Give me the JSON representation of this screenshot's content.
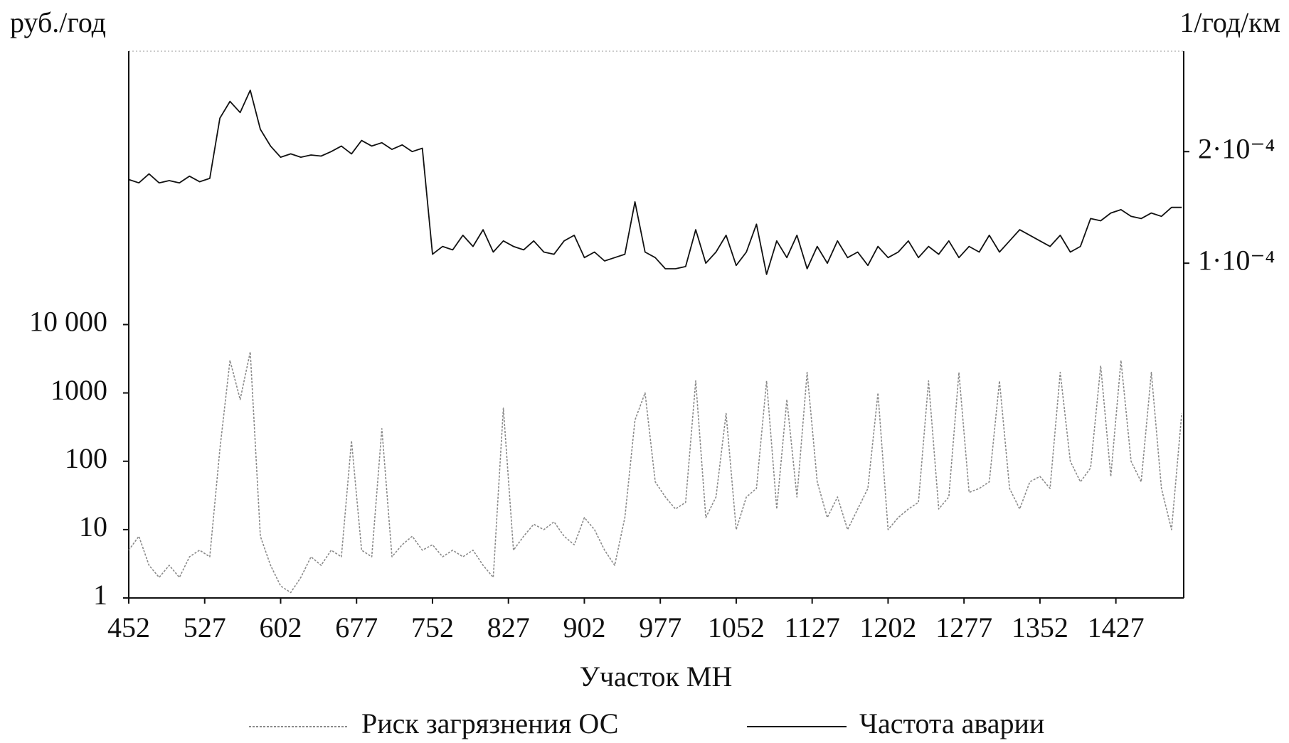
{
  "chart_data": {
    "type": "line",
    "ylabel": "руб./год",
    "y2label": "1/год/км",
    "xlabel": "Участок МН",
    "x": [
      452,
      462,
      472,
      482,
      492,
      502,
      512,
      522,
      532,
      542,
      552,
      562,
      572,
      582,
      592,
      602,
      612,
      622,
      632,
      642,
      652,
      662,
      672,
      682,
      692,
      702,
      712,
      722,
      732,
      742,
      752,
      762,
      772,
      782,
      792,
      802,
      812,
      822,
      832,
      842,
      852,
      862,
      872,
      882,
      892,
      902,
      912,
      922,
      932,
      942,
      952,
      962,
      972,
      982,
      992,
      1002,
      1012,
      1022,
      1032,
      1042,
      1052,
      1062,
      1072,
      1082,
      1092,
      1102,
      1112,
      1122,
      1132,
      1142,
      1152,
      1162,
      1172,
      1182,
      1192,
      1202,
      1212,
      1222,
      1232,
      1242,
      1252,
      1262,
      1272,
      1282,
      1292,
      1302,
      1312,
      1322,
      1332,
      1342,
      1352,
      1362,
      1372,
      1382,
      1392,
      1402,
      1412,
      1422,
      1432,
      1442,
      1452,
      1462,
      1472,
      1482,
      1492
    ],
    "series": [
      {
        "name": "Риск загрязнения ОС",
        "color": "#8a8a8a",
        "dashed": true,
        "values": [
          5,
          8,
          3,
          2,
          3,
          2,
          4,
          5,
          4,
          150,
          3000,
          800,
          4000,
          8,
          3,
          1.5,
          1.2,
          2,
          4,
          3,
          5,
          4,
          200,
          5,
          4,
          300,
          4,
          6,
          8,
          5,
          6,
          4,
          5,
          4,
          5,
          3,
          2,
          600,
          5,
          8,
          12,
          10,
          13,
          8,
          6,
          15,
          10,
          5,
          3,
          15,
          400,
          1000,
          50,
          30,
          20,
          25,
          1500,
          15,
          30,
          500,
          10,
          30,
          40,
          1500,
          20,
          800,
          30,
          2000,
          50,
          15,
          30,
          10,
          20,
          40,
          1000,
          10,
          15,
          20,
          25,
          1500,
          20,
          30,
          2000,
          35,
          40,
          50,
          1500,
          40,
          20,
          50,
          60,
          40,
          2000,
          100,
          50,
          80,
          2500,
          60,
          3000,
          100,
          50,
          2000,
          40,
          10,
          500
        ]
      },
      {
        "name": "Частота аварии",
        "color": "#111111",
        "axis": "y2",
        "values": [
          0.000175,
          0.000172,
          0.00018,
          0.000172,
          0.000174,
          0.000172,
          0.000178,
          0.000173,
          0.000176,
          0.00023,
          0.000245,
          0.000235,
          0.000255,
          0.00022,
          0.000205,
          0.000195,
          0.000198,
          0.000195,
          0.000197,
          0.000196,
          0.0002,
          0.000205,
          0.000198,
          0.00021,
          0.000205,
          0.000208,
          0.000202,
          0.000206,
          0.0002,
          0.000203,
          0.000108,
          0.000115,
          0.000112,
          0.000125,
          0.000115,
          0.00013,
          0.00011,
          0.00012,
          0.000115,
          0.000112,
          0.00012,
          0.00011,
          0.000108,
          0.00012,
          0.000125,
          0.000105,
          0.00011,
          0.000102,
          0.000105,
          0.000108,
          0.000155,
          0.00011,
          0.000105,
          9.5e-05,
          9.5e-05,
          9.7e-05,
          0.00013,
          0.0001,
          0.00011,
          0.000125,
          9.8e-05,
          0.00011,
          0.000135,
          9e-05,
          0.00012,
          0.000105,
          0.000125,
          9.5e-05,
          0.000115,
          0.0001,
          0.00012,
          0.000105,
          0.00011,
          9.8e-05,
          0.000115,
          0.000105,
          0.00011,
          0.00012,
          0.000105,
          0.000115,
          0.000108,
          0.00012,
          0.000105,
          0.000115,
          0.00011,
          0.000125,
          0.00011,
          0.00012,
          0.00013,
          0.000125,
          0.00012,
          0.000115,
          0.000125,
          0.00011,
          0.000115,
          0.00014,
          0.000138,
          0.000145,
          0.000148,
          0.000142,
          0.00014,
          0.000145,
          0.000142,
          0.00015,
          0.00015
        ]
      }
    ],
    "xlim": [
      452,
      1494
    ],
    "xticks": [
      452,
      527,
      602,
      677,
      752,
      827,
      902,
      977,
      1052,
      1127,
      1202,
      1277,
      1352,
      1427
    ],
    "ylim": [
      1,
      100000000
    ],
    "yscale": "log",
    "yticks": [
      1,
      10,
      100,
      1000,
      {
        "value": 10000,
        "label": "10 000"
      }
    ],
    "y2lim": [
      -0.0002,
      0.00029
    ],
    "y2ticks": [
      {
        "value": 0.0001,
        "label": "1·10⁻⁴"
      },
      {
        "value": 0.0002,
        "label": "2·10⁻⁴"
      }
    ],
    "legend": "bottom"
  }
}
